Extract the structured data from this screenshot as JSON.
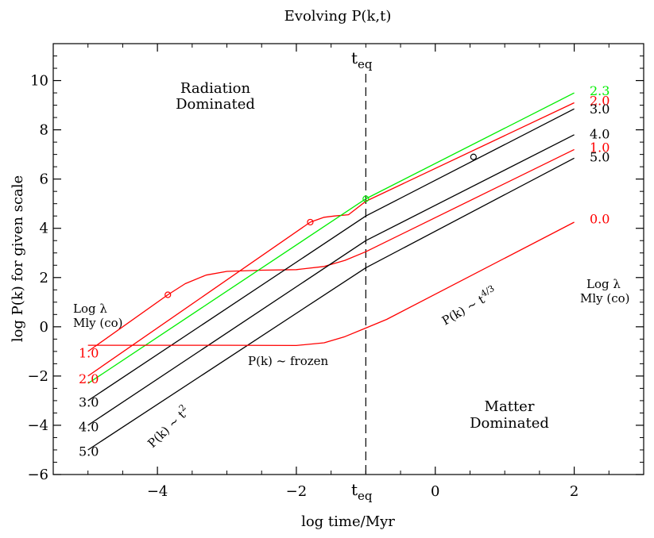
{
  "chart_data": {
    "type": "line",
    "title": "Evolving P(k,t)",
    "xlabel": "log time/Myr",
    "ylabel": "log P(k) for given scale",
    "xlim": [
      -5.5,
      3.0
    ],
    "ylim": [
      -6,
      11.5
    ],
    "x_ticks": [
      -4,
      -2,
      0,
      2
    ],
    "x_tick_labels": [
      "−4",
      "−2",
      "0",
      "2"
    ],
    "y_ticks": [
      -6,
      -4,
      -2,
      0,
      2,
      4,
      6,
      8,
      10
    ],
    "y_tick_labels": [
      "−6",
      "−4",
      "−2",
      "0",
      "2",
      "4",
      "6",
      "8",
      "10"
    ],
    "grid": false,
    "teq_x": -1.0,
    "teq_label": {
      "main": "t",
      "sub": "eq"
    },
    "colors": {
      "black": "#000000",
      "red": "#ff0000",
      "green": "#00ee00"
    },
    "series": [
      {
        "color": "red",
        "points": [
          [
            -5,
            -1.0
          ],
          [
            -3.85,
            1.3
          ],
          [
            -3.6,
            1.75
          ],
          [
            -3.3,
            2.1
          ],
          [
            -3.0,
            2.25
          ],
          [
            -2.5,
            2.3
          ],
          [
            -2.0,
            2.32
          ],
          [
            -1.6,
            2.45
          ],
          [
            -1.3,
            2.7
          ],
          [
            -1.0,
            3.05
          ],
          [
            2,
            7.2
          ]
        ],
        "marker": [
          -3.85,
          1.3
        ]
      },
      {
        "color": "red",
        "points": [
          [
            -5,
            -2.0
          ],
          [
            -1.8,
            4.25
          ],
          [
            -1.6,
            4.45
          ],
          [
            -1.45,
            4.5
          ],
          [
            -1.25,
            4.55
          ],
          [
            -1.0,
            5.1
          ],
          [
            2,
            9.1
          ]
        ],
        "marker": [
          -1.8,
          4.25
        ]
      },
      {
        "color": "green",
        "points": [
          [
            -5,
            -2.3
          ],
          [
            -1.0,
            5.2
          ],
          [
            2,
            9.5
          ]
        ],
        "marker": [
          -1.0,
          5.2
        ]
      },
      {
        "color": "black",
        "points": [
          [
            -5,
            -3.0
          ],
          [
            -1.0,
            4.5
          ],
          [
            2,
            8.85
          ]
        ],
        "marker": [
          0.55,
          6.9
        ]
      },
      {
        "color": "black",
        "points": [
          [
            -5,
            -4.0
          ],
          [
            -1.0,
            3.5
          ],
          [
            2,
            7.8
          ]
        ]
      },
      {
        "color": "black",
        "points": [
          [
            -5,
            -5.0
          ],
          [
            -1.0,
            2.4
          ],
          [
            2,
            6.85
          ]
        ]
      },
      {
        "color": "red",
        "points": [
          [
            -5,
            -0.75
          ],
          [
            -4,
            -0.75
          ],
          [
            -3,
            -0.75
          ],
          [
            -2,
            -0.76
          ],
          [
            -1.6,
            -0.65
          ],
          [
            -1.3,
            -0.4
          ],
          [
            -1.0,
            -0.05
          ],
          [
            -0.7,
            0.3
          ],
          [
            2,
            4.25
          ]
        ]
      }
    ],
    "left_labels": [
      {
        "text": "1.0",
        "y": -1.05,
        "color": "red"
      },
      {
        "text": "2.0",
        "y": -2.1,
        "color": "red"
      },
      {
        "text": "3.0",
        "y": -3.05,
        "color": "black"
      },
      {
        "text": "4.0",
        "y": -4.05,
        "color": "black"
      },
      {
        "text": "5.0",
        "y": -5.05,
        "color": "black"
      }
    ],
    "right_labels": [
      {
        "text": "2.3",
        "y": 9.6,
        "color": "green"
      },
      {
        "text": "2.0",
        "y": 9.2,
        "color": "red"
      },
      {
        "text": "3.0",
        "y": 8.85,
        "color": "black"
      },
      {
        "text": "4.0",
        "y": 7.85,
        "color": "black"
      },
      {
        "text": "1.0",
        "y": 7.3,
        "color": "red"
      },
      {
        "text": "5.0",
        "y": 6.9,
        "color": "black"
      },
      {
        "text": "0.0",
        "y": 4.4,
        "color": "red"
      }
    ],
    "annotations": {
      "left_header_1": "Log λ",
      "left_header_2": "Mly (co)",
      "right_header_1": "Log λ",
      "right_header_2": "Mly (co)",
      "radiation_1": "Radiation",
      "radiation_2": "Dominated",
      "matter_1": "Matter",
      "matter_2": "Dominated",
      "frozen": "P(k) ~ frozen",
      "t2_base": "P(k) ~ t",
      "t2_exp": "2",
      "t43_base": "P(k) ~ t",
      "t43_exp": "4/3"
    }
  }
}
